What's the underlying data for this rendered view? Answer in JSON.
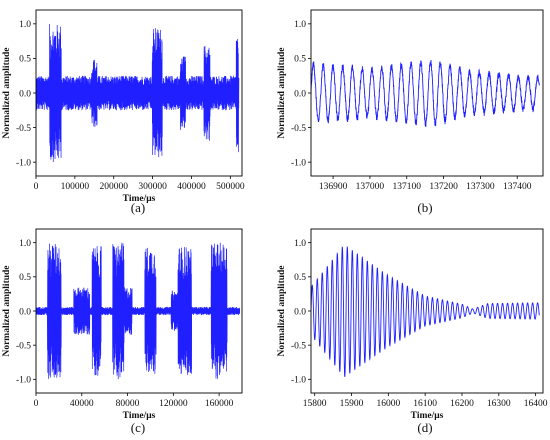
{
  "figure": {
    "series_color": "#1f1fff",
    "axis_color": "#000000"
  },
  "chart_data": [
    {
      "id": "a",
      "type": "line",
      "panel_label": "(a)",
      "xlabel": "Time/μs",
      "ylabel": "Normalized amplitude",
      "xlim": [
        0,
        530000
      ],
      "ylim": [
        -1.2,
        1.2
      ],
      "xticks": [
        0,
        100000,
        200000,
        300000,
        400000,
        500000
      ],
      "xtick_labels": [
        "0",
        "100000",
        "200000",
        "300000",
        "400000",
        "500000"
      ],
      "yticks": [
        -1.0,
        -0.5,
        0.0,
        0.5,
        1.0
      ],
      "ytick_labels": [
        "-1.0",
        "-0.5",
        "0.0",
        "0.5",
        "1.0"
      ],
      "signal": {
        "kind": "noise_bursts",
        "x_range": [
          0,
          522000
        ],
        "baseline_amplitude": 0.25,
        "bursts": [
          {
            "center": 50000,
            "width": 30000,
            "amplitude": 1.0
          },
          {
            "center": 150000,
            "width": 14000,
            "amplitude": 0.5
          },
          {
            "center": 312000,
            "width": 26000,
            "amplitude": 0.95
          },
          {
            "center": 378000,
            "width": 14000,
            "amplitude": 0.55
          },
          {
            "center": 440000,
            "width": 16000,
            "amplitude": 0.7
          },
          {
            "center": 518000,
            "width": 6000,
            "amplitude": 0.9
          }
        ]
      }
    },
    {
      "id": "b",
      "type": "line",
      "panel_label": "(b)",
      "xlabel": "",
      "ylabel": "Normalized amplitude",
      "xlim": [
        136840,
        137470
      ],
      "ylim": [
        -1.2,
        1.2
      ],
      "xticks": [
        136900,
        137000,
        137100,
        137200,
        137300,
        137400
      ],
      "xtick_labels": [
        "136900",
        "137000",
        "137100",
        "137200",
        "137300",
        "137400"
      ],
      "yticks": [
        -1.0,
        -0.5,
        0.0,
        0.5,
        1.0
      ],
      "ytick_labels": [
        "-1.0",
        "-0.5",
        "0.0",
        "0.5",
        "1.0"
      ],
      "signal": {
        "kind": "oscillation",
        "x_range": [
          136840,
          137460
        ],
        "period": 26.5,
        "envelope": [
          [
            136840,
            0.42
          ],
          [
            137000,
            0.34
          ],
          [
            137170,
            0.46
          ],
          [
            137270,
            0.3
          ],
          [
            137460,
            0.22
          ]
        ],
        "noise": 0.05
      }
    },
    {
      "id": "c",
      "type": "line",
      "panel_label": "(c)",
      "xlabel": "Time/μs",
      "ylabel": "Normalized amplitude",
      "xlim": [
        0,
        180000
      ],
      "ylim": [
        -1.2,
        1.2
      ],
      "xticks": [
        0,
        40000,
        80000,
        120000,
        160000
      ],
      "xtick_labels": [
        "0",
        "40000",
        "80000",
        "120000",
        "160000"
      ],
      "yticks": [
        -1.0,
        -0.5,
        0.0,
        0.5,
        1.0
      ],
      "ytick_labels": [
        "-1.0",
        "-0.5",
        "0.0",
        "0.5",
        "1.0"
      ],
      "signal": {
        "kind": "noise_bursts",
        "x_range": [
          0,
          178000
        ],
        "baseline_amplitude": 0.06,
        "bursts": [
          {
            "center": 16000,
            "width": 12000,
            "amplitude": 1.0
          },
          {
            "center": 40000,
            "width": 14000,
            "amplitude": 0.35
          },
          {
            "center": 53000,
            "width": 8000,
            "amplitude": 0.95
          },
          {
            "center": 72000,
            "width": 10000,
            "amplitude": 1.0
          },
          {
            "center": 80000,
            "width": 8000,
            "amplitude": 0.35
          },
          {
            "center": 100000,
            "width": 10000,
            "amplitude": 0.95
          },
          {
            "center": 124000,
            "width": 12000,
            "amplitude": 0.3
          },
          {
            "center": 130000,
            "width": 12000,
            "amplitude": 0.95
          },
          {
            "center": 160000,
            "width": 14000,
            "amplitude": 1.0
          }
        ]
      }
    },
    {
      "id": "d",
      "type": "line",
      "panel_label": "(d)",
      "xlabel": "Time/μs",
      "ylabel": "Normalized amplitude",
      "xlim": [
        15790,
        16420
      ],
      "ylim": [
        -1.2,
        1.2
      ],
      "xticks": [
        15800,
        15900,
        16000,
        16100,
        16200,
        16300,
        16400
      ],
      "xtick_labels": [
        "15800",
        "15900",
        "16000",
        "16100",
        "16200",
        "16300",
        "16400"
      ],
      "yticks": [
        -1.0,
        -0.5,
        0.0,
        0.5,
        1.0
      ],
      "ytick_labels": [
        "-1.0",
        "-0.5",
        "0.0",
        "0.5",
        "1.0"
      ],
      "signal": {
        "kind": "oscillation",
        "x_range": [
          15790,
          16410
        ],
        "period": 13.6,
        "envelope": [
          [
            15790,
            0.35
          ],
          [
            15880,
            0.97
          ],
          [
            16000,
            0.52
          ],
          [
            16100,
            0.22
          ],
          [
            16200,
            0.1
          ],
          [
            16230,
            0.03
          ],
          [
            16270,
            0.11
          ],
          [
            16410,
            0.12
          ]
        ],
        "noise": 0.0
      }
    }
  ]
}
